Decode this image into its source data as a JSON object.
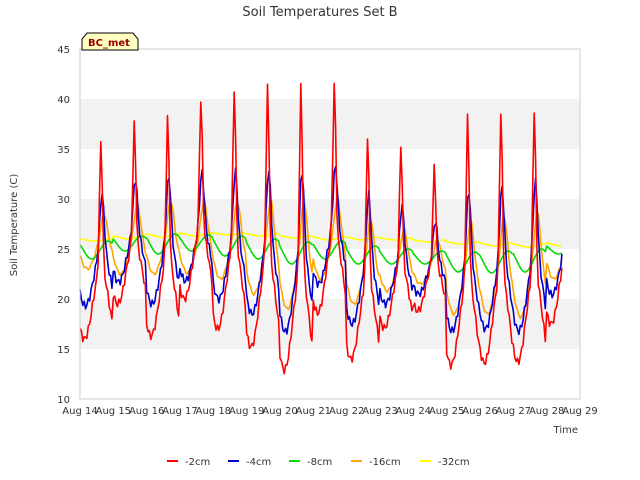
{
  "chart_data": {
    "type": "line",
    "title": "Soil Temperatures Set B",
    "xlabel": "Time",
    "ylabel": "Soil Temperature (C)",
    "ylim": [
      10,
      45
    ],
    "yticks": [
      10,
      15,
      20,
      25,
      30,
      35,
      40,
      45
    ],
    "xlim": [
      "Aug 14",
      "Aug 29"
    ],
    "xticks": [
      "Aug 14",
      "Aug 15",
      "Aug 16",
      "Aug 17",
      "Aug 18",
      "Aug 19",
      "Aug 20",
      "Aug 21",
      "Aug 22",
      "Aug 23",
      "Aug 24",
      "Aug 25",
      "Aug 26",
      "Aug 27",
      "Aug 28",
      "Aug 29"
    ],
    "grid": "horizontal bands",
    "legend": "bottom-center",
    "annotation": "BC_met",
    "series": [
      {
        "name": "-2cm",
        "color": "#ff0000",
        "daily_min": [
          16.0,
          19.5,
          16.3,
          20.0,
          17.0,
          15.2,
          12.9,
          18.6,
          14.0,
          17.1,
          18.8,
          13.4,
          13.6,
          13.7,
          17.5
        ],
        "daily_max": [
          35.8,
          37.5,
          38.3,
          40.1,
          41.1,
          41.4,
          41.3,
          41.7,
          36.5,
          35.4,
          33.2,
          38.3,
          38.8,
          39.1,
          39.1
        ]
      },
      {
        "name": "-4cm",
        "color": "#0000cc",
        "daily_min": [
          19.3,
          21.7,
          19.5,
          21.8,
          20.0,
          18.5,
          16.7,
          21.5,
          17.5,
          19.5,
          20.5,
          16.8,
          17.0,
          16.8,
          20.4
        ],
        "daily_max": [
          30.5,
          32.0,
          32.3,
          32.7,
          32.8,
          32.9,
          32.8,
          33.3,
          30.5,
          29.3,
          27.8,
          30.8,
          31.2,
          31.8,
          31.8
        ]
      },
      {
        "name": "-8cm",
        "color": "#00dd00",
        "daily_min": [
          24.0,
          24.8,
          24.5,
          24.8,
          24.3,
          24.0,
          23.5,
          24.0,
          23.5,
          23.5,
          23.5,
          22.7,
          22.6,
          22.7,
          24.5
        ],
        "daily_max": [
          25.8,
          26.3,
          26.5,
          26.4,
          26.3,
          26.0,
          25.7,
          25.8,
          25.3,
          25.0,
          24.8,
          24.7,
          24.8,
          25.0,
          25.5
        ]
      },
      {
        "name": "-16cm",
        "color": "#ffa500",
        "daily_min": [
          23.0,
          22.5,
          22.5,
          22.6,
          22.0,
          20.5,
          19.0,
          22.0,
          19.5,
          20.8,
          21.5,
          18.5,
          18.5,
          18.2,
          22.0
        ],
        "daily_max": [
          28.5,
          29.5,
          29.8,
          29.8,
          29.8,
          29.9,
          29.8,
          30.0,
          28.0,
          27.0,
          26.0,
          27.8,
          28.3,
          28.7,
          28.7
        ]
      },
      {
        "name": "-32cm",
        "color": "#ffff00",
        "daily_min": [
          25.8,
          26.0,
          26.2,
          26.3,
          26.4,
          26.3,
          26.1,
          25.9,
          25.9,
          25.9,
          25.7,
          25.5,
          25.3,
          25.2,
          25.3
        ],
        "daily_max": [
          26.0,
          26.3,
          26.5,
          26.6,
          26.6,
          26.5,
          26.3,
          26.2,
          26.2,
          26.1,
          25.9,
          25.7,
          25.6,
          25.5,
          25.6
        ]
      }
    ]
  }
}
